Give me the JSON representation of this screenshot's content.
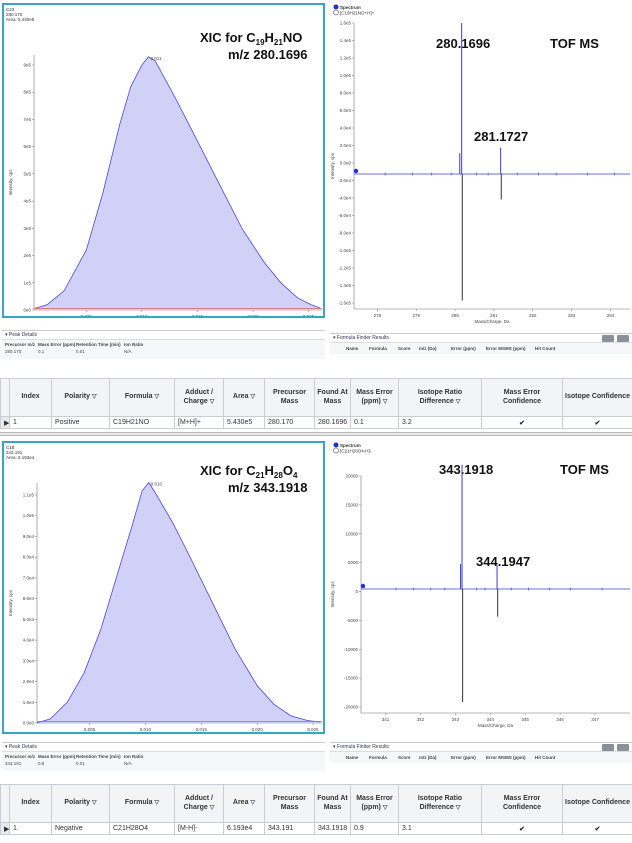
{
  "panels": [
    {
      "xic": {
        "header": [
          "C23",
          "280.170",
          "Area: 5.430e5"
        ],
        "title_prefix": "XIC for C",
        "formula_parts": [
          [
            "19",
            "H"
          ],
          [
            "21",
            "NO"
          ]
        ],
        "mz_label": "m/z 280.1696",
        "peak_label": "0.011",
        "x_axis_label": "Time, min",
        "y_axis_label": "Intensity, cps",
        "x_ticks": [
          "0.005",
          "0.010",
          "0.015",
          "0.020",
          "0.025"
        ],
        "y_ticks": [
          "0e0",
          "1e5",
          "2e5",
          "3e5",
          "4e5",
          "5e5",
          "6e5",
          "7e5",
          "8e5",
          "9e5"
        ],
        "peak_details_label": "Peak Details",
        "peak_table": {
          "headers": [
            "Precursor m/z",
            "Mass Error (ppm)",
            "Retention Time (min)",
            "Ion Ratio"
          ],
          "values": [
            "280.170",
            "0.1",
            "0.01",
            "N/A"
          ]
        }
      },
      "spectrum": {
        "legend": [
          "Spectrum",
          "[C19H21NO+H]+"
        ],
        "main_peak_label": "280.1696",
        "iso_peak_label": "281.1727",
        "tof_label": "TOF MS",
        "x_axis_label": "Mass/Charge, Da",
        "y_axis_label": "Intensity, cps",
        "x_ticks": [
          "278",
          "279",
          "280",
          "281",
          "282",
          "283",
          "284"
        ],
        "y_ticks": [
          "1.6e5",
          "1.4e5",
          "1.2e5",
          "1.0e5",
          "8.0e4",
          "6.0e4",
          "4.0e4",
          "2.0e4",
          "0.0e0",
          "-2.0e4",
          "-4.0e4",
          "-6.0e4",
          "-8.0e4",
          "-1.0e5",
          "-1.2e5",
          "-1.4e5",
          "-1.6e5"
        ],
        "formula_finder_label": "Formula Finder Results",
        "ff_headers": [
          "Name",
          "Formula",
          "Score",
          "m/z (Da)",
          "Error (ppm)",
          "Error MSMS (ppm)",
          "Hit Count"
        ]
      },
      "row": {
        "index": "1",
        "polarity": "Positive",
        "formula": "C19H21NO",
        "adduct": "[M+H]+",
        "area": "5.430e5",
        "precursor": "280.170",
        "found": "280.1696",
        "mass_error": "0.1",
        "isotope_diff": "3.2"
      }
    },
    {
      "xic": {
        "header": [
          "C18",
          "343.191",
          "Area: 6.193e4"
        ],
        "title_prefix": "XIC for C",
        "formula_parts": [
          [
            "21",
            "H"
          ],
          [
            "28",
            "O"
          ],
          [
            "4",
            ""
          ]
        ],
        "mz_label": "m/z 343.1918",
        "peak_label": "0.010",
        "x_axis_label": "Time, min",
        "y_axis_label": "Intensity, cps",
        "x_ticks": [
          "0.005",
          "0.010",
          "0.015",
          "0.020",
          "0.025"
        ],
        "y_ticks": [
          "0.0e0",
          "1.0e4",
          "2.0e4",
          "3.0e4",
          "4.0e4",
          "5.0e4",
          "6.0e4",
          "7.0e4",
          "8.0e4",
          "9.0e4",
          "1.0e5",
          "1.1e5"
        ],
        "peak_details_label": "Peak Details",
        "peak_table": {
          "headers": [
            "Precursor m/z",
            "Mass Error (ppm)",
            "Retention Time (min)",
            "Ion Ratio"
          ],
          "values": [
            "343.191",
            "0.9",
            "0.01",
            "N/A"
          ]
        }
      },
      "spectrum": {
        "legend": [
          "Spectrum",
          "[C21H28O4-H]-"
        ],
        "main_peak_label": "343.1918",
        "iso_peak_label": "344.1947",
        "tof_label": "TOF MS",
        "x_axis_label": "Mass/Charge, Da",
        "y_axis_label": "Intensity, cps",
        "x_ticks": [
          "341",
          "342",
          "343",
          "344",
          "345",
          "346",
          "347"
        ],
        "y_ticks": [
          "20000",
          "15000",
          "10000",
          "5000",
          "0",
          "-5000",
          "-10000",
          "-15000",
          "-20000"
        ],
        "formula_finder_label": "Formula Finder Results",
        "ff_headers": [
          "Name",
          "Formula",
          "Score",
          "m/z (Da)",
          "Error (ppm)",
          "Error MSMS (ppm)",
          "Hit Count"
        ]
      },
      "row": {
        "index": "1",
        "polarity": "Negative",
        "formula": "C21H28O4",
        "adduct": "[M-H]-",
        "area": "6.193e4",
        "precursor": "343.191",
        "found": "343.1918",
        "mass_error": "0.9",
        "isotope_diff": "3.1"
      }
    }
  ],
  "results_table": {
    "headers": {
      "index": "Index",
      "polarity": "Polarity",
      "formula": "Formula",
      "adduct": "Adduct / Charge",
      "area": "Area",
      "precursor": "Precursor Mass",
      "found": "Found At Mass",
      "mass_error": "Mass Error (ppm)",
      "isotope": "Isotope Ratio Difference",
      "mass_conf": "Mass Error Confidence",
      "iso_conf": "Isotope Confidence"
    },
    "filter_icon": "funnel-icon",
    "check_icon": "checkmark-icon",
    "check_color": "#22a12a"
  },
  "colors": {
    "xic_fill": "#c9c9f7",
    "xic_line": "#4a4ad8",
    "xic_border": "#3aa3c8",
    "spectrum_line": "#3b3bd6",
    "mirror_line": "#333333",
    "baseline": "#d06060"
  }
}
